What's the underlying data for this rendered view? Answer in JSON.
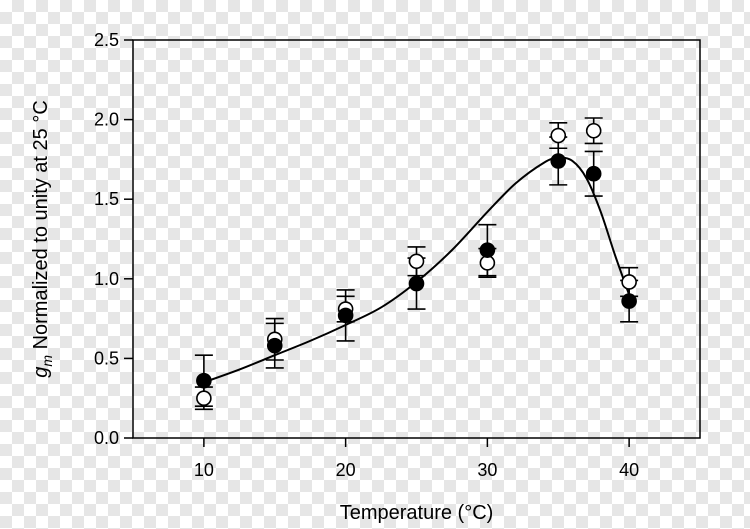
{
  "chart_data": {
    "type": "scatter",
    "xlabel": "Temperature (°C)",
    "ylabel_symbol": "g",
    "ylabel_subscript": "m",
    "ylabel_rest": " Normalized to unity at 25 °C",
    "xlim": [
      5,
      45
    ],
    "ylim": [
      0.0,
      2.5
    ],
    "x_ticks": [
      10,
      20,
      30,
      40
    ],
    "x_tick_labels": [
      "10",
      "20",
      "30",
      "40"
    ],
    "y_ticks": [
      0.0,
      0.5,
      1.0,
      1.5,
      2.0,
      2.5
    ],
    "y_tick_labels": [
      "0.0",
      "0.5",
      "1.0",
      "1.5",
      "2.0",
      "2.5"
    ],
    "grid": false,
    "legend": "none",
    "series": [
      {
        "marker": "filled-circle",
        "x": [
          10,
          15,
          20,
          25,
          30,
          35,
          37.5,
          40
        ],
        "y": [
          0.36,
          0.58,
          0.77,
          0.97,
          1.18,
          1.74,
          1.66,
          0.86
        ],
        "err": [
          0.16,
          0.14,
          0.16,
          0.16,
          0.16,
          0.15,
          0.14,
          0.13
        ]
      },
      {
        "marker": "open-circle",
        "x": [
          10,
          15,
          20,
          25,
          30,
          35,
          37.5,
          40
        ],
        "y": [
          0.25,
          0.62,
          0.81,
          1.11,
          1.1,
          1.9,
          1.93,
          0.98
        ],
        "err": [
          0.07,
          0.13,
          0.08,
          0.09,
          0.09,
          0.08,
          0.08,
          0.09
        ]
      }
    ],
    "fit_curve": {
      "x": [
        10,
        12.5,
        15,
        17.5,
        20,
        22.5,
        25,
        27.5,
        30,
        32,
        34,
        35,
        36,
        37,
        38,
        39,
        40
      ],
      "y": [
        0.35,
        0.43,
        0.52,
        0.61,
        0.71,
        0.82,
        0.98,
        1.18,
        1.42,
        1.6,
        1.73,
        1.76,
        1.74,
        1.63,
        1.42,
        1.15,
        0.9
      ]
    }
  }
}
